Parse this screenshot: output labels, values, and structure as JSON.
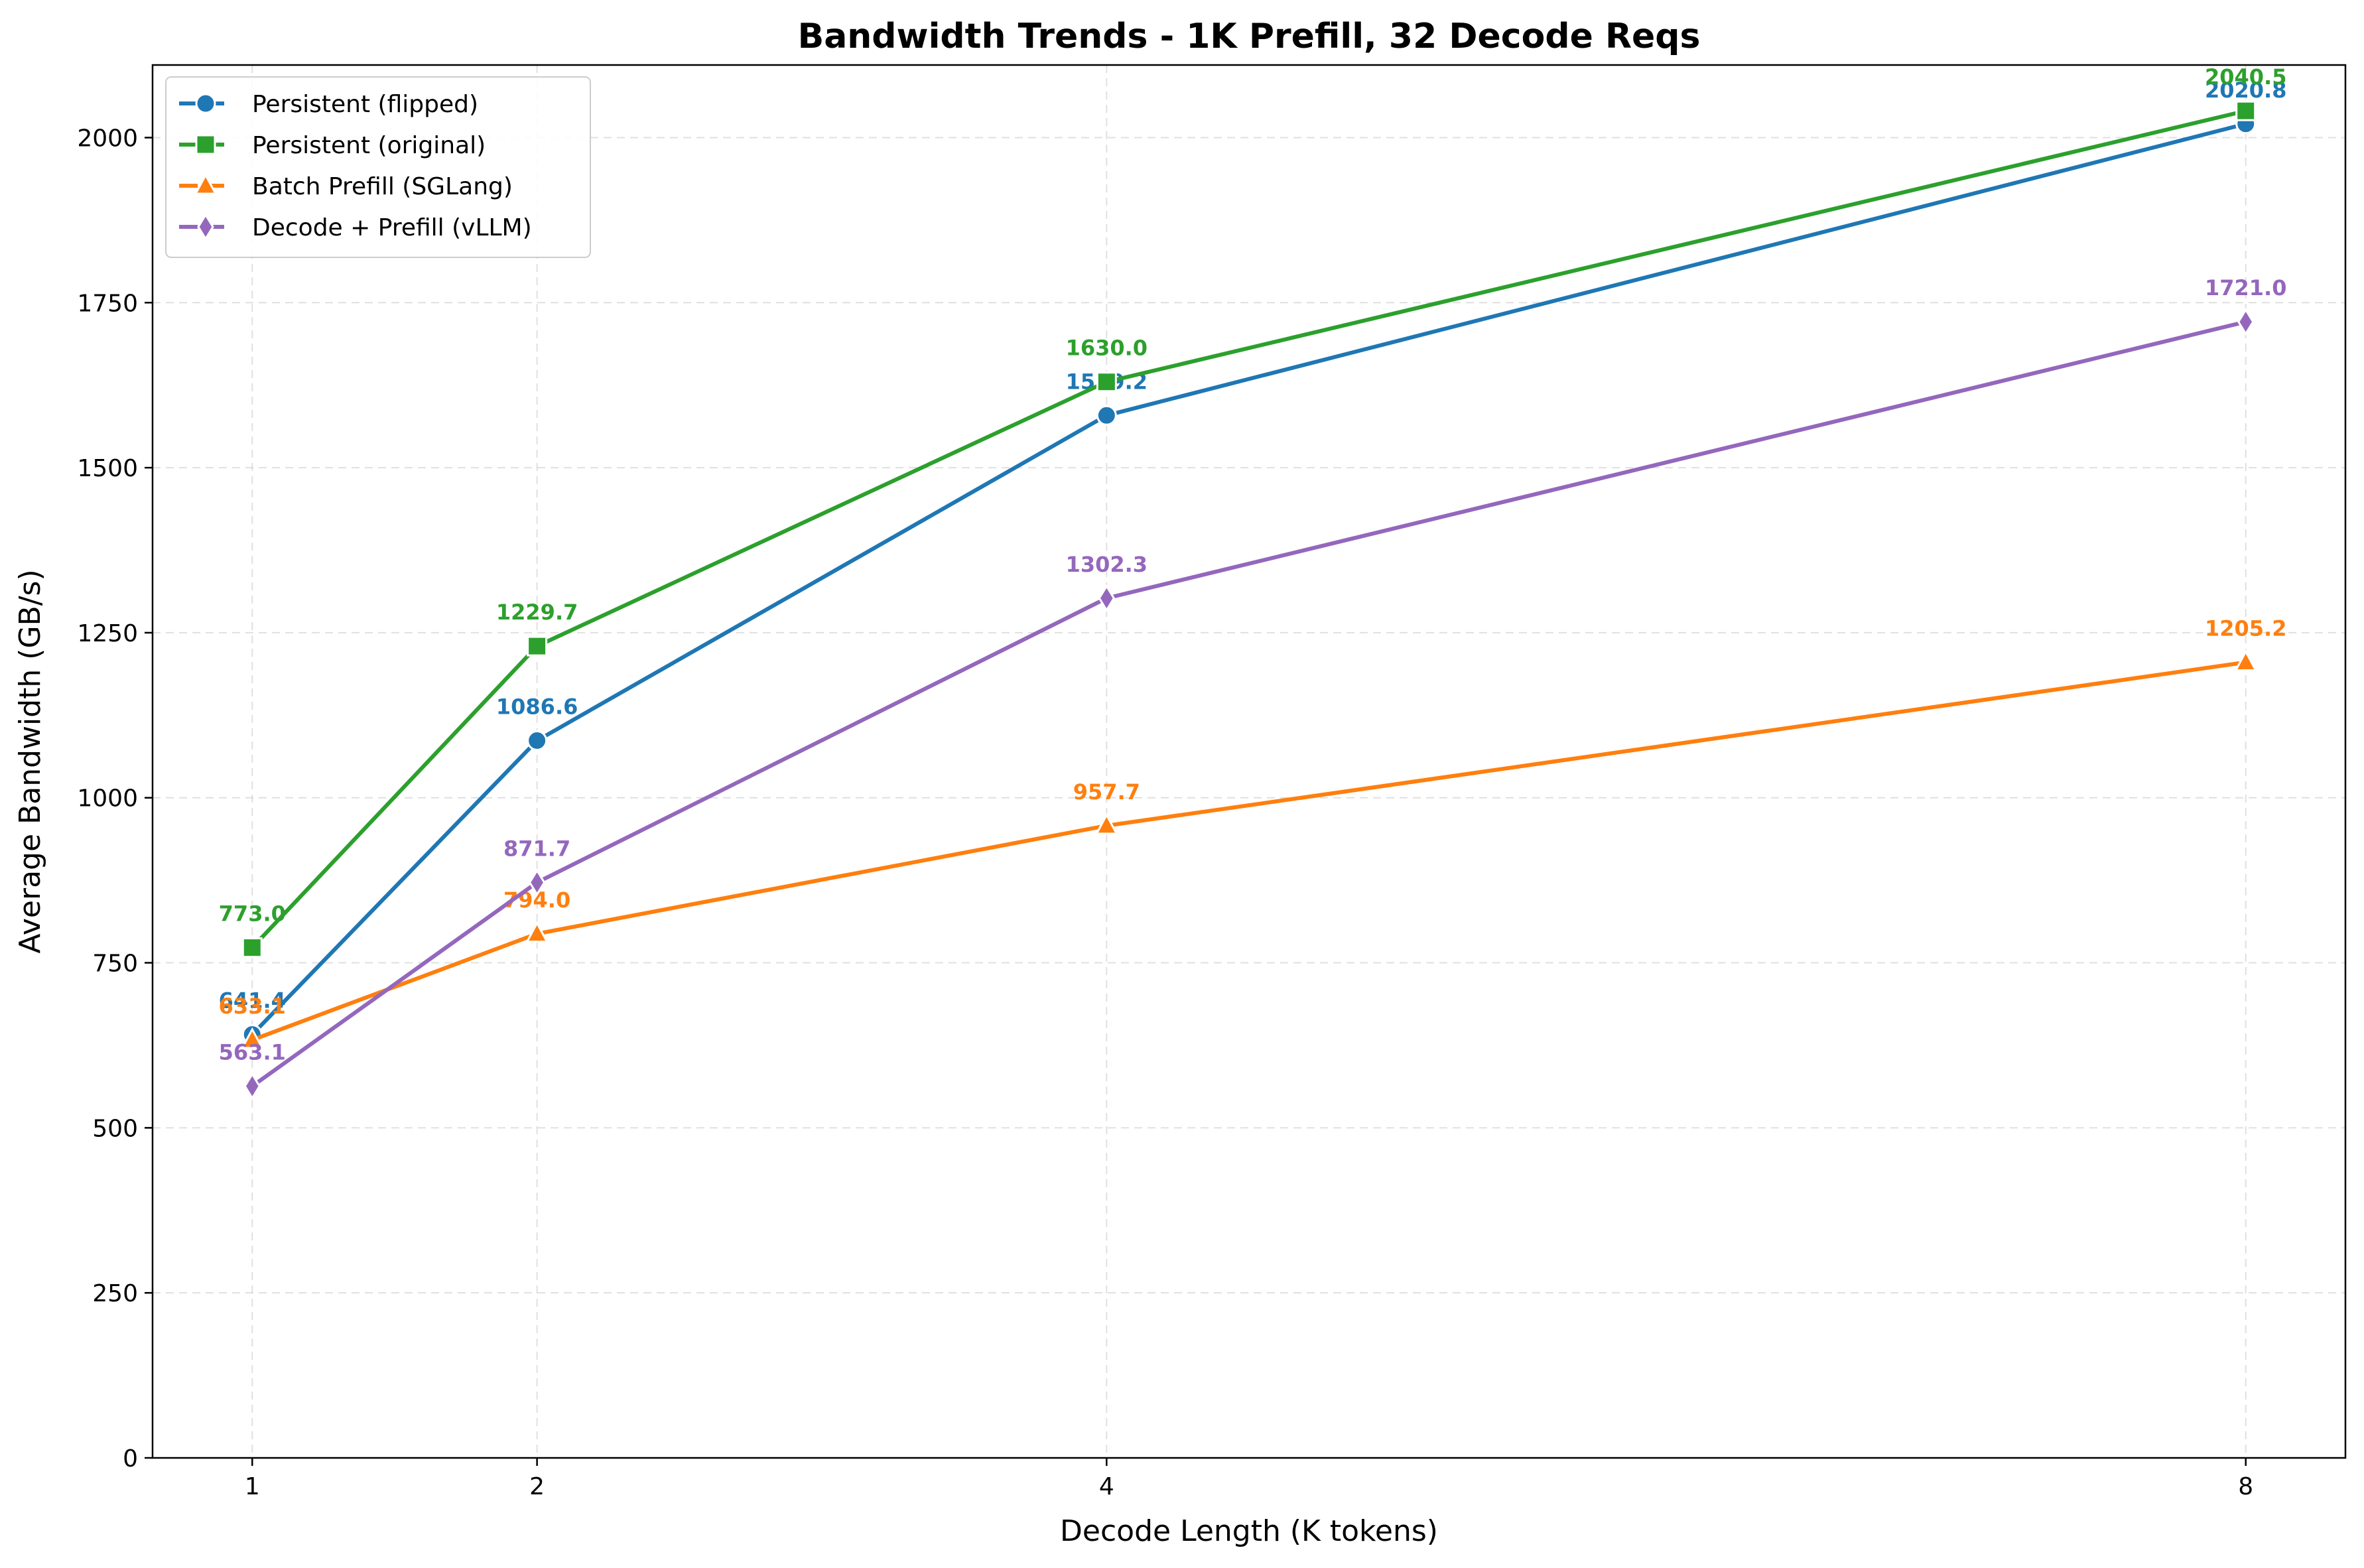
{
  "chart_data": {
    "type": "line",
    "title": "Bandwidth Trends - 1K Prefill, 32 Decode Reqs",
    "xlabel": "Decode Length (K tokens)",
    "ylabel": "Average Bandwidth (GB/s)",
    "x": [
      1,
      2,
      4,
      8
    ],
    "x_tick_labels": [
      "1",
      "2",
      "4",
      "8"
    ],
    "xlim": [
      0.65,
      8.35
    ],
    "ylim": [
      0,
      2110
    ],
    "y_ticks": [
      0,
      250,
      500,
      750,
      1000,
      1250,
      1500,
      1750,
      2000
    ],
    "y_tick_labels": [
      "0",
      "250",
      "500",
      "750",
      "1000",
      "1250",
      "1500",
      "1750",
      "2000"
    ],
    "grid": true,
    "legend_position": "top-left",
    "series": [
      {
        "name": "Persistent (flipped)",
        "color": "#1f77b4",
        "marker": "circle",
        "values": [
          641.4,
          1086.6,
          1579.2,
          2020.8
        ],
        "labels": [
          "641.4",
          "1086.6",
          "1579.2",
          "2020.8"
        ]
      },
      {
        "name": "Persistent (original)",
        "color": "#2ca02c",
        "marker": "square",
        "values": [
          773.0,
          1229.7,
          1630.0,
          2040.5
        ],
        "labels": [
          "773.0",
          "1229.7",
          "1630.0",
          "2040.5"
        ]
      },
      {
        "name": "Batch Prefill (SGLang)",
        "color": "#ff7f0e",
        "marker": "triangle",
        "values": [
          633.1,
          794.0,
          957.7,
          1205.2
        ],
        "labels": [
          "633.1",
          "794.0",
          "957.7",
          "1205.2"
        ]
      },
      {
        "name": "Decode + Prefill (vLLM)",
        "color": "#9467bd",
        "marker": "diamond",
        "values": [
          563.1,
          871.7,
          1302.3,
          1721.0
        ],
        "labels": [
          "563.1",
          "871.7",
          "1302.3",
          "1721.0"
        ]
      }
    ]
  }
}
